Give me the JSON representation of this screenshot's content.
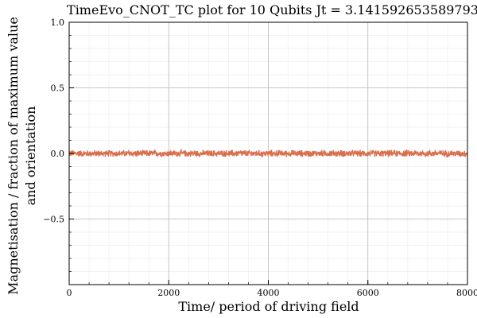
{
  "chart_data": {
    "type": "line",
    "title": "TimeEvo_CNOT_TC plot for 10 Qubits Jt = 3.141592653589793",
    "xlabel": "Time/ period of driving field",
    "ylabel_line1": "Magnetisation / fraction of maximum value",
    "ylabel_line2": "and orientation",
    "xlim": [
      0,
      8000
    ],
    "ylim": [
      -1.0,
      1.0
    ],
    "x_ticks": [
      0,
      2000,
      4000,
      6000,
      8000
    ],
    "x_tick_labels": [
      "0",
      "2000",
      "4000",
      "6000",
      "8000"
    ],
    "y_ticks": [
      -0.5,
      0.0,
      0.5,
      1.0
    ],
    "y_tick_labels": [
      "−0.5",
      "0.0",
      "0.5",
      "1.0"
    ],
    "grid": true,
    "legend": "none",
    "series": [
      {
        "color": "#d9704d",
        "x_start": 0,
        "x_end": 8000,
        "num_points": 8000,
        "mean": 0.0,
        "noise_amplitude": 0.03
      }
    ]
  }
}
